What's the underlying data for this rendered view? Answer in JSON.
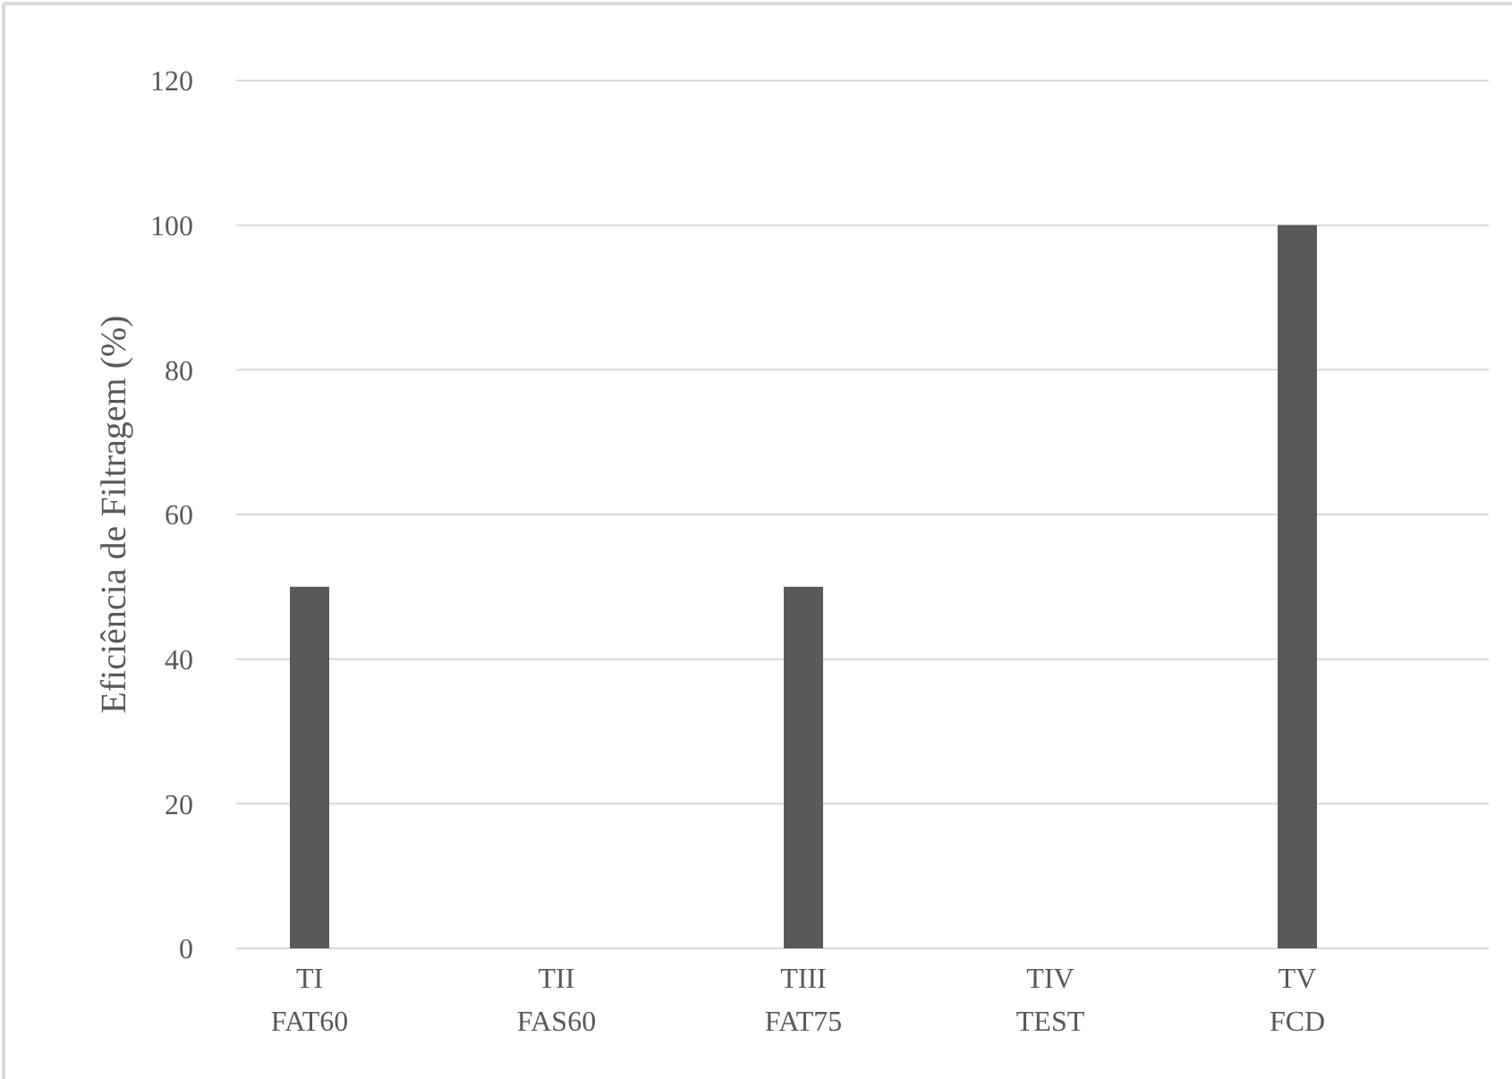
{
  "chart_data": {
    "type": "bar",
    "ylabel": "Eficiência de Filtragem (%)",
    "categories": [
      "TI\nFAT60",
      "TII\nFAS60",
      "TIII\nFAT75",
      "TIV\nTEST",
      "TV\nFCD"
    ],
    "values": [
      50,
      0,
      50,
      0,
      100
    ],
    "color": "#595959",
    "ylim": [
      0,
      120
    ],
    "yticks": [
      0,
      20,
      40,
      60,
      80,
      100,
      120
    ],
    "grid": "y"
  }
}
